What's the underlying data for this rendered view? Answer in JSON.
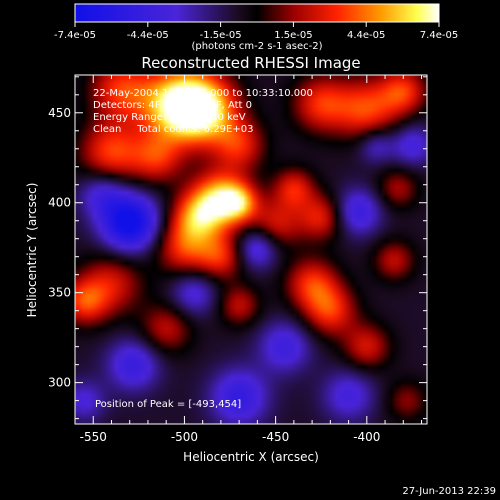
{
  "chart_data": {
    "type": "heatmap",
    "title": "Reconstructed RHESSI Image",
    "xlabel": "Heliocentric X (arcsec)",
    "ylabel": "Heliocentric Y (arcsec)",
    "xlim": [
      -560,
      -367
    ],
    "ylim": [
      277,
      471
    ],
    "x_ticks": [
      -550,
      -500,
      -450,
      -400
    ],
    "y_ticks": [
      300,
      350,
      400,
      450
    ],
    "colorbar": {
      "range": [
        -7.4e-05,
        7.4e-05
      ],
      "tick_labels": [
        "-7.4e-05",
        "-4.4e-05",
        "-1.5e-05",
        "1.5e-05",
        "4.4e-05",
        "7.4e-05"
      ],
      "units": "(photons cm-2 s-1 asec-2)",
      "colormap": "blue-black-red-yellow-white"
    },
    "info_lines": [
      "22-May-2004 10:27:10.000 to 10:33:10.000",
      "Detectors: 4F 5F 6F 7F 8F, Att 0",
      "Energy Range: 25.0 - 50.0 keV",
      "Clean     Total counts: 6.29E+03"
    ],
    "peak_label": "Position of Peak = [-493,454]",
    "peak": {
      "x": -493,
      "y": 454
    },
    "sources": [
      {
        "x": -505,
        "y": 455,
        "w": 14,
        "amp": 0.9
      },
      {
        "x": -490,
        "y": 452,
        "w": 13,
        "amp": 1.0
      },
      {
        "x": -535,
        "y": 463,
        "w": 12,
        "amp": 0.55
      },
      {
        "x": -425,
        "y": 455,
        "w": 11,
        "amp": 0.55
      },
      {
        "x": -400,
        "y": 452,
        "w": 12,
        "amp": 0.6
      },
      {
        "x": -380,
        "y": 462,
        "w": 9,
        "amp": 0.55
      },
      {
        "x": -470,
        "y": 432,
        "w": 10,
        "amp": 0.5
      },
      {
        "x": -540,
        "y": 428,
        "w": 12,
        "amp": 0.6
      },
      {
        "x": -515,
        "y": 425,
        "w": 10,
        "amp": 0.5
      },
      {
        "x": -480,
        "y": 402,
        "w": 11,
        "amp": 0.9
      },
      {
        "x": -470,
        "y": 400,
        "w": 7,
        "amp": 0.55
      },
      {
        "x": -493,
        "y": 392,
        "w": 10,
        "amp": 0.65
      },
      {
        "x": -500,
        "y": 375,
        "w": 11,
        "amp": 0.55
      },
      {
        "x": -480,
        "y": 370,
        "w": 9,
        "amp": 0.5
      },
      {
        "x": -450,
        "y": 388,
        "w": 10,
        "amp": 0.45
      },
      {
        "x": -440,
        "y": 408,
        "w": 8,
        "amp": 0.5
      },
      {
        "x": -425,
        "y": 392,
        "w": 9,
        "amp": 0.5
      },
      {
        "x": -540,
        "y": 355,
        "w": 12,
        "amp": 0.45
      },
      {
        "x": -555,
        "y": 345,
        "w": 9,
        "amp": 0.55
      },
      {
        "x": -510,
        "y": 330,
        "w": 10,
        "amp": 0.4
      },
      {
        "x": -470,
        "y": 343,
        "w": 8,
        "amp": 0.4
      },
      {
        "x": -430,
        "y": 355,
        "w": 10,
        "amp": 0.55
      },
      {
        "x": -420,
        "y": 340,
        "w": 10,
        "amp": 0.55
      },
      {
        "x": -400,
        "y": 320,
        "w": 9,
        "amp": 0.45
      },
      {
        "x": -385,
        "y": 368,
        "w": 8,
        "amp": 0.4
      },
      {
        "x": -383,
        "y": 408,
        "w": 8,
        "amp": 0.35
      },
      {
        "x": -378,
        "y": 290,
        "w": 8,
        "amp": 0.3
      },
      {
        "x": -530,
        "y": 389,
        "w": 11,
        "amp": -0.95
      },
      {
        "x": -545,
        "y": 405,
        "w": 9,
        "amp": -0.4
      },
      {
        "x": -460,
        "y": 375,
        "w": 8,
        "amp": -0.5
      },
      {
        "x": -495,
        "y": 350,
        "w": 9,
        "amp": -0.4
      },
      {
        "x": -528,
        "y": 310,
        "w": 10,
        "amp": -0.5
      },
      {
        "x": -470,
        "y": 292,
        "w": 11,
        "amp": -0.55
      },
      {
        "x": -445,
        "y": 320,
        "w": 10,
        "amp": -0.45
      },
      {
        "x": -410,
        "y": 293,
        "w": 10,
        "amp": -0.4
      },
      {
        "x": -405,
        "y": 395,
        "w": 9,
        "amp": -0.5
      },
      {
        "x": -375,
        "y": 432,
        "w": 8,
        "amp": -0.4
      },
      {
        "x": -395,
        "y": 432,
        "w": 7,
        "amp": -0.35
      },
      {
        "x": -555,
        "y": 290,
        "w": 8,
        "amp": -0.35
      }
    ]
  },
  "footer": {
    "timestamp": "27-Jun-2013 22:39"
  }
}
